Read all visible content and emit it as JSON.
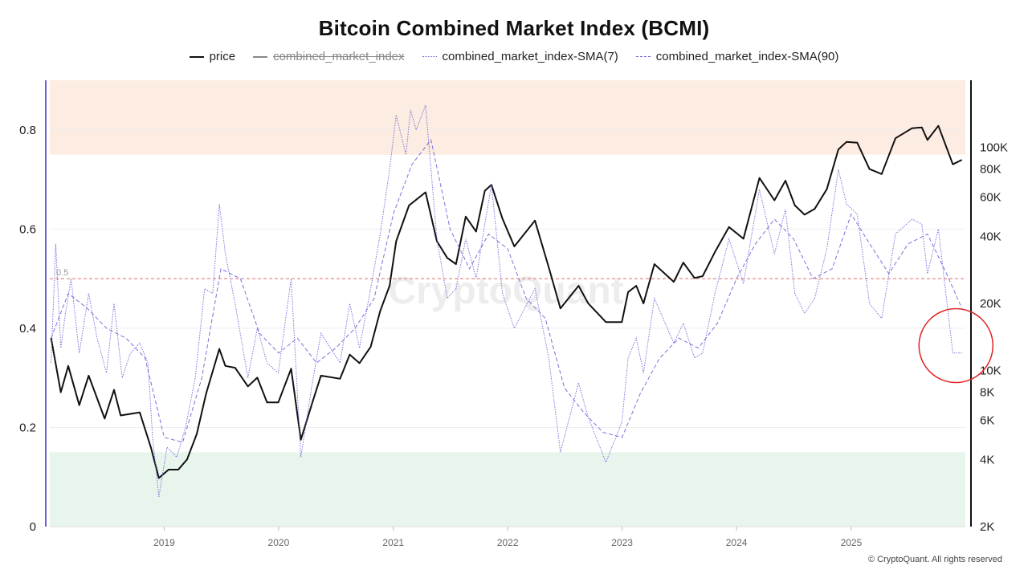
{
  "title": "Bitcoin Combined Market Index (BCMI)",
  "legend": [
    {
      "label": "price",
      "style": "solid",
      "color": "#111111",
      "active": true
    },
    {
      "label": "combined_market_index",
      "style": "solid",
      "color": "#888888",
      "active": false
    },
    {
      "label": "combined_market_index-SMA(7)",
      "style": "dotted",
      "color": "#6a63d8",
      "active": true
    },
    {
      "label": "combined_market_index-SMA(90)",
      "style": "dashed",
      "color": "#6a63d8",
      "active": true
    }
  ],
  "watermark": "CryptoQuant",
  "credit": "© CryptoQuant. All rights reserved",
  "threshold_label": "0.5",
  "colors": {
    "price": "#111111",
    "sma": "#6a63d8",
    "upper_band": "#fdece1",
    "lower_band": "#e8f5ec",
    "threshold": "#d9534f",
    "highlight": "#e02424",
    "left_axis": "#6a63d8"
  },
  "chart_data": {
    "type": "line",
    "x_range": [
      "2018-01-01",
      "2025-12-31"
    ],
    "x_ticks": [
      "2019",
      "2020",
      "2021",
      "2022",
      "2023",
      "2024",
      "2025"
    ],
    "y_left": {
      "range": [
        0,
        0.9
      ],
      "ticks": [
        "0",
        "0.2",
        "0.4",
        "0.6",
        "0.8"
      ]
    },
    "y_right": {
      "scale": "log",
      "range": [
        2000,
        200000
      ],
      "ticks": [
        "2K",
        "4K",
        "6K",
        "8K",
        "10K",
        "20K",
        "40K",
        "60K",
        "80K",
        "100K"
      ]
    },
    "bands": [
      {
        "name": "upper",
        "from": 0.75,
        "to": 0.9
      },
      {
        "name": "lower",
        "from": 0,
        "to": 0.15
      }
    ],
    "threshold": 0.5,
    "series": [
      {
        "name": "price",
        "axis": "right",
        "points": [
          [
            "2018-01-05",
            14000
          ],
          [
            "2018-02-05",
            8000
          ],
          [
            "2018-03-01",
            10500
          ],
          [
            "2018-04-05",
            7000
          ],
          [
            "2018-05-05",
            9500
          ],
          [
            "2018-06-25",
            6100
          ],
          [
            "2018-07-25",
            8200
          ],
          [
            "2018-08-15",
            6300
          ],
          [
            "2018-10-15",
            6500
          ],
          [
            "2018-11-20",
            4500
          ],
          [
            "2018-12-15",
            3300
          ],
          [
            "2019-01-15",
            3600
          ],
          [
            "2019-02-15",
            3600
          ],
          [
            "2019-03-15",
            4000
          ],
          [
            "2019-04-15",
            5200
          ],
          [
            "2019-05-15",
            7900
          ],
          [
            "2019-06-26",
            12500
          ],
          [
            "2019-07-15",
            10500
          ],
          [
            "2019-08-15",
            10300
          ],
          [
            "2019-09-25",
            8500
          ],
          [
            "2019-10-25",
            9300
          ],
          [
            "2019-11-25",
            7200
          ],
          [
            "2019-12-31",
            7200
          ],
          [
            "2020-02-10",
            10200
          ],
          [
            "2020-03-12",
            4900
          ],
          [
            "2020-04-15",
            7000
          ],
          [
            "2020-05-15",
            9500
          ],
          [
            "2020-07-15",
            9200
          ],
          [
            "2020-08-15",
            11800
          ],
          [
            "2020-09-15",
            10800
          ],
          [
            "2020-10-21",
            12800
          ],
          [
            "2020-11-20",
            18500
          ],
          [
            "2020-12-20",
            24000
          ],
          [
            "2021-01-10",
            38000
          ],
          [
            "2021-02-20",
            55000
          ],
          [
            "2021-04-14",
            63000
          ],
          [
            "2021-05-20",
            38000
          ],
          [
            "2021-06-22",
            32000
          ],
          [
            "2021-07-20",
            30000
          ],
          [
            "2021-08-20",
            49000
          ],
          [
            "2021-09-22",
            42000
          ],
          [
            "2021-10-20",
            64000
          ],
          [
            "2021-11-10",
            68000
          ],
          [
            "2021-12-15",
            48000
          ],
          [
            "2022-01-22",
            36000
          ],
          [
            "2022-03-29",
            47000
          ],
          [
            "2022-05-12",
            29000
          ],
          [
            "2022-06-18",
            19000
          ],
          [
            "2022-08-15",
            24000
          ],
          [
            "2022-09-15",
            20000
          ],
          [
            "2022-11-10",
            16500
          ],
          [
            "2022-12-31",
            16500
          ],
          [
            "2023-01-20",
            22500
          ],
          [
            "2023-02-15",
            24000
          ],
          [
            "2023-03-10",
            20000
          ],
          [
            "2023-04-14",
            30000
          ],
          [
            "2023-06-15",
            25000
          ],
          [
            "2023-07-15",
            30500
          ],
          [
            "2023-08-20",
            26000
          ],
          [
            "2023-09-15",
            26500
          ],
          [
            "2023-10-24",
            34000
          ],
          [
            "2023-12-08",
            44000
          ],
          [
            "2024-01-23",
            39000
          ],
          [
            "2024-03-14",
            73000
          ],
          [
            "2024-05-01",
            58000
          ],
          [
            "2024-06-05",
            71000
          ],
          [
            "2024-07-05",
            55000
          ],
          [
            "2024-08-05",
            50000
          ],
          [
            "2024-09-06",
            53000
          ],
          [
            "2024-10-15",
            65000
          ],
          [
            "2024-11-21",
            98000
          ],
          [
            "2024-12-17",
            106000
          ],
          [
            "2025-01-20",
            105000
          ],
          [
            "2025-02-28",
            80000
          ],
          [
            "2025-04-08",
            76000
          ],
          [
            "2025-05-22",
            110000
          ],
          [
            "2025-07-14",
            122000
          ],
          [
            "2025-08-14",
            123000
          ],
          [
            "2025-09-01",
            108000
          ],
          [
            "2025-10-06",
            125000
          ],
          [
            "2025-11-21",
            84000
          ],
          [
            "2025-12-20",
            88000
          ]
        ]
      },
      {
        "name": "combined_market_index-SMA(7)",
        "axis": "left",
        "points": [
          [
            "2018-01-05",
            0.33
          ],
          [
            "2018-01-20",
            0.57
          ],
          [
            "2018-02-05",
            0.36
          ],
          [
            "2018-02-20",
            0.43
          ],
          [
            "2018-03-10",
            0.5
          ],
          [
            "2018-04-05",
            0.35
          ],
          [
            "2018-05-05",
            0.47
          ],
          [
            "2018-06-01",
            0.38
          ],
          [
            "2018-07-01",
            0.31
          ],
          [
            "2018-07-25",
            0.45
          ],
          [
            "2018-08-20",
            0.3
          ],
          [
            "2018-09-15",
            0.35
          ],
          [
            "2018-10-15",
            0.37
          ],
          [
            "2018-11-10",
            0.33
          ],
          [
            "2018-11-25",
            0.18
          ],
          [
            "2018-12-15",
            0.06
          ],
          [
            "2019-01-10",
            0.16
          ],
          [
            "2019-02-10",
            0.14
          ],
          [
            "2019-03-10",
            0.2
          ],
          [
            "2019-04-10",
            0.3
          ],
          [
            "2019-05-10",
            0.48
          ],
          [
            "2019-06-05",
            0.47
          ],
          [
            "2019-06-26",
            0.65
          ],
          [
            "2019-07-15",
            0.55
          ],
          [
            "2019-08-15",
            0.45
          ],
          [
            "2019-09-25",
            0.3
          ],
          [
            "2019-10-25",
            0.4
          ],
          [
            "2019-11-25",
            0.33
          ],
          [
            "2019-12-31",
            0.31
          ],
          [
            "2020-02-10",
            0.5
          ],
          [
            "2020-03-12",
            0.14
          ],
          [
            "2020-04-15",
            0.28
          ],
          [
            "2020-05-15",
            0.39
          ],
          [
            "2020-07-15",
            0.33
          ],
          [
            "2020-08-15",
            0.45
          ],
          [
            "2020-09-15",
            0.36
          ],
          [
            "2020-10-21",
            0.48
          ],
          [
            "2020-11-20",
            0.59
          ],
          [
            "2020-12-20",
            0.72
          ],
          [
            "2021-01-10",
            0.83
          ],
          [
            "2021-02-10",
            0.75
          ],
          [
            "2021-02-25",
            0.84
          ],
          [
            "2021-03-15",
            0.8
          ],
          [
            "2021-04-14",
            0.85
          ],
          [
            "2021-05-20",
            0.58
          ],
          [
            "2021-06-22",
            0.46
          ],
          [
            "2021-07-20",
            0.48
          ],
          [
            "2021-08-20",
            0.58
          ],
          [
            "2021-09-22",
            0.5
          ],
          [
            "2021-10-20",
            0.61
          ],
          [
            "2021-11-10",
            0.69
          ],
          [
            "2021-12-15",
            0.47
          ],
          [
            "2022-01-22",
            0.4
          ],
          [
            "2022-03-29",
            0.48
          ],
          [
            "2022-05-12",
            0.34
          ],
          [
            "2022-06-18",
            0.15
          ],
          [
            "2022-08-15",
            0.29
          ],
          [
            "2022-09-15",
            0.22
          ],
          [
            "2022-11-10",
            0.13
          ],
          [
            "2022-12-31",
            0.21
          ],
          [
            "2023-01-20",
            0.34
          ],
          [
            "2023-02-15",
            0.38
          ],
          [
            "2023-03-10",
            0.31
          ],
          [
            "2023-04-14",
            0.46
          ],
          [
            "2023-06-15",
            0.37
          ],
          [
            "2023-07-15",
            0.41
          ],
          [
            "2023-08-20",
            0.34
          ],
          [
            "2023-09-15",
            0.35
          ],
          [
            "2023-10-24",
            0.47
          ],
          [
            "2023-12-08",
            0.58
          ],
          [
            "2024-01-23",
            0.49
          ],
          [
            "2024-03-14",
            0.68
          ],
          [
            "2024-05-01",
            0.55
          ],
          [
            "2024-06-05",
            0.64
          ],
          [
            "2024-07-05",
            0.47
          ],
          [
            "2024-08-05",
            0.43
          ],
          [
            "2024-09-06",
            0.46
          ],
          [
            "2024-10-15",
            0.56
          ],
          [
            "2024-11-21",
            0.72
          ],
          [
            "2024-12-17",
            0.65
          ],
          [
            "2025-01-20",
            0.63
          ],
          [
            "2025-02-28",
            0.45
          ],
          [
            "2025-04-08",
            0.42
          ],
          [
            "2025-05-22",
            0.59
          ],
          [
            "2025-07-14",
            0.62
          ],
          [
            "2025-08-14",
            0.61
          ],
          [
            "2025-09-01",
            0.51
          ],
          [
            "2025-10-06",
            0.6
          ],
          [
            "2025-11-21",
            0.35
          ],
          [
            "2025-12-20",
            0.35
          ]
        ]
      },
      {
        "name": "combined_market_index-SMA(90)",
        "axis": "left",
        "points": [
          [
            "2018-01-05",
            0.38
          ],
          [
            "2018-03-01",
            0.47
          ],
          [
            "2018-05-01",
            0.44
          ],
          [
            "2018-07-01",
            0.4
          ],
          [
            "2018-09-01",
            0.38
          ],
          [
            "2018-11-01",
            0.34
          ],
          [
            "2019-01-01",
            0.18
          ],
          [
            "2019-03-01",
            0.17
          ],
          [
            "2019-05-01",
            0.3
          ],
          [
            "2019-07-01",
            0.52
          ],
          [
            "2019-09-01",
            0.5
          ],
          [
            "2019-11-01",
            0.39
          ],
          [
            "2020-01-01",
            0.35
          ],
          [
            "2020-03-01",
            0.38
          ],
          [
            "2020-05-01",
            0.33
          ],
          [
            "2020-07-01",
            0.36
          ],
          [
            "2020-09-01",
            0.4
          ],
          [
            "2020-11-01",
            0.46
          ],
          [
            "2021-01-01",
            0.63
          ],
          [
            "2021-03-01",
            0.73
          ],
          [
            "2021-05-01",
            0.78
          ],
          [
            "2021-07-01",
            0.6
          ],
          [
            "2021-09-01",
            0.52
          ],
          [
            "2021-11-01",
            0.59
          ],
          [
            "2022-01-01",
            0.56
          ],
          [
            "2022-03-01",
            0.46
          ],
          [
            "2022-05-01",
            0.42
          ],
          [
            "2022-07-01",
            0.28
          ],
          [
            "2022-09-01",
            0.23
          ],
          [
            "2022-11-01",
            0.19
          ],
          [
            "2023-01-01",
            0.18
          ],
          [
            "2023-03-01",
            0.27
          ],
          [
            "2023-05-01",
            0.34
          ],
          [
            "2023-07-01",
            0.38
          ],
          [
            "2023-09-01",
            0.36
          ],
          [
            "2023-11-01",
            0.41
          ],
          [
            "2024-01-01",
            0.5
          ],
          [
            "2024-03-01",
            0.57
          ],
          [
            "2024-05-01",
            0.62
          ],
          [
            "2024-07-01",
            0.58
          ],
          [
            "2024-09-01",
            0.5
          ],
          [
            "2024-11-01",
            0.52
          ],
          [
            "2025-01-01",
            0.63
          ],
          [
            "2025-03-01",
            0.57
          ],
          [
            "2025-05-01",
            0.51
          ],
          [
            "2025-07-01",
            0.57
          ],
          [
            "2025-09-01",
            0.59
          ],
          [
            "2025-11-01",
            0.51
          ],
          [
            "2025-12-20",
            0.44
          ]
        ]
      }
    ],
    "annotation": {
      "shape": "circle",
      "date": "2025-12-01",
      "value": 0.365
    }
  }
}
